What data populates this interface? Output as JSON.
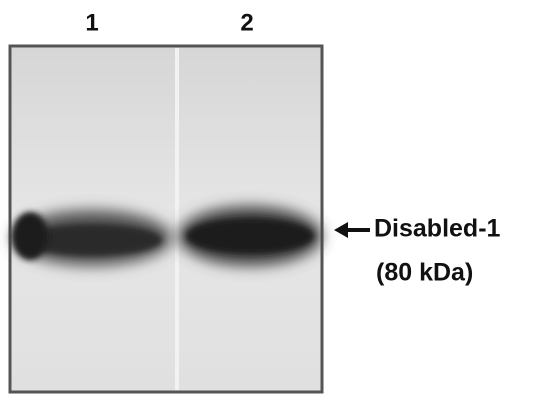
{
  "lanes": [
    {
      "label": "1"
    },
    {
      "label": "2"
    }
  ],
  "annotation": {
    "lines": [
      "Disabled-1",
      "(80 kDa)"
    ]
  }
}
